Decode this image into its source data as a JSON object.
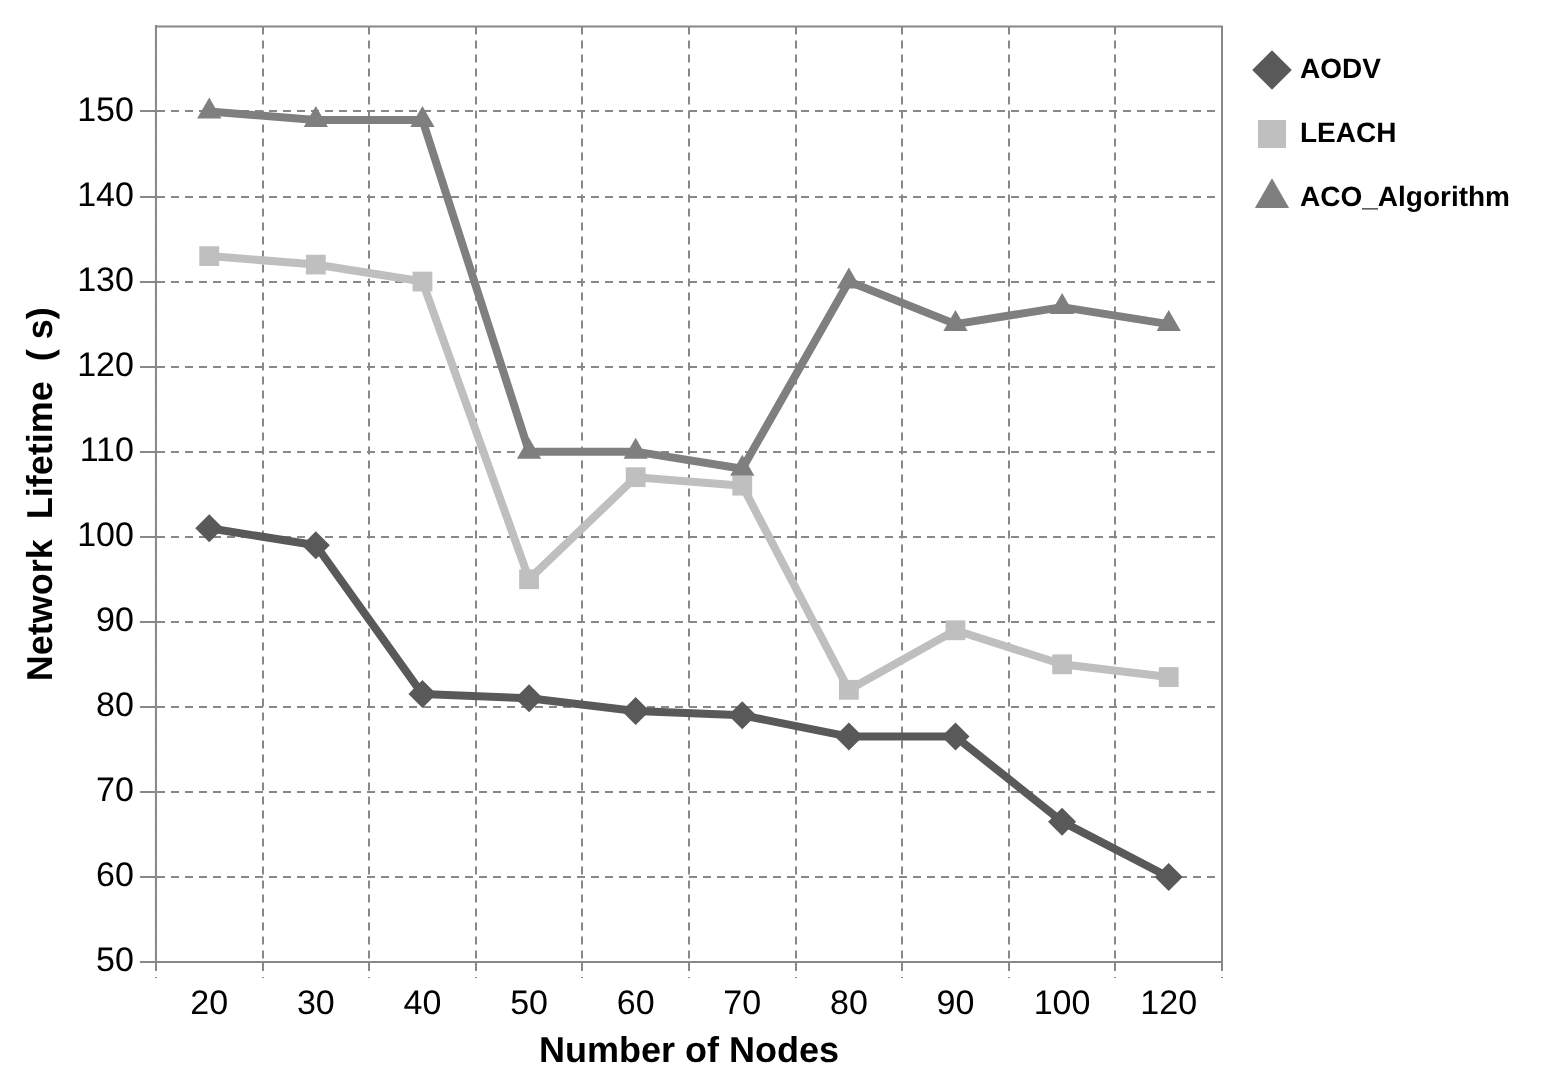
{
  "chart_data": {
    "type": "line",
    "xlabel": "Number of Nodes",
    "ylabel": "Network  Lifetime  ( s)",
    "categories": [
      "20",
      "30",
      "40",
      "50",
      "60",
      "70",
      "80",
      "90",
      "100",
      "120"
    ],
    "series": [
      {
        "name": "AODV",
        "color": "#595959",
        "marker": "diamond",
        "values": [
          101,
          99,
          81.5,
          81,
          79.5,
          79,
          76.5,
          76.5,
          66.5,
          60
        ]
      },
      {
        "name": "LEACH",
        "color": "#bfbfbf",
        "marker": "square",
        "values": [
          133,
          132,
          130,
          95,
          107,
          106,
          82,
          89,
          85,
          83.5
        ]
      },
      {
        "name": "ACO_Algorithm",
        "color": "#7f7f7f",
        "marker": "triangle",
        "values": [
          150,
          149,
          149,
          110,
          110,
          108,
          130,
          125,
          127,
          125
        ]
      }
    ],
    "ylim": [
      50,
      160
    ],
    "yticks": [
      50,
      60,
      70,
      80,
      90,
      100,
      110,
      120,
      130,
      140,
      150
    ],
    "grid": true,
    "legend": "top right",
    "line_style": "solid"
  }
}
